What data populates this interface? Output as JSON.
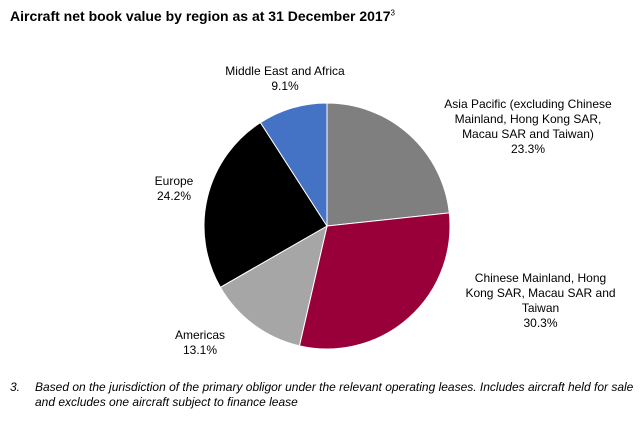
{
  "title": "Aircraft net book value by region as at 31 December 2017",
  "title_footnote_ref": "3",
  "chart_data": {
    "type": "pie",
    "title": "Aircraft net book value by region as at 31 December 2017",
    "slices": [
      {
        "label": "Asia Pacific (excluding Chinese Mainland, Hong Kong SAR, Macau SAR and Taiwan)",
        "value": 23.3,
        "value_label": "23.3%",
        "color": "#7f7f7f"
      },
      {
        "label": "Chinese Mainland, Hong Kong SAR, Macau SAR and Taiwan",
        "value": 30.3,
        "value_label": "30.3%",
        "color": "#99003a"
      },
      {
        "label": "Americas",
        "value": 13.1,
        "value_label": "13.1%",
        "color": "#a6a6a6"
      },
      {
        "label": "Europe",
        "value": 24.2,
        "value_label": "24.2%",
        "color": "#000000"
      },
      {
        "label": "Middle East and Africa",
        "value": 9.1,
        "value_label": "9.1%",
        "color": "#4472c4"
      }
    ],
    "start_angle": "12 o'clock",
    "direction": "clockwise"
  },
  "footnote": {
    "number": "3.",
    "text": "Based on the jurisdiction of the primary obligor under the relevant operating leases. Includes aircraft held for sale and excludes one aircraft subject to finance lease"
  }
}
